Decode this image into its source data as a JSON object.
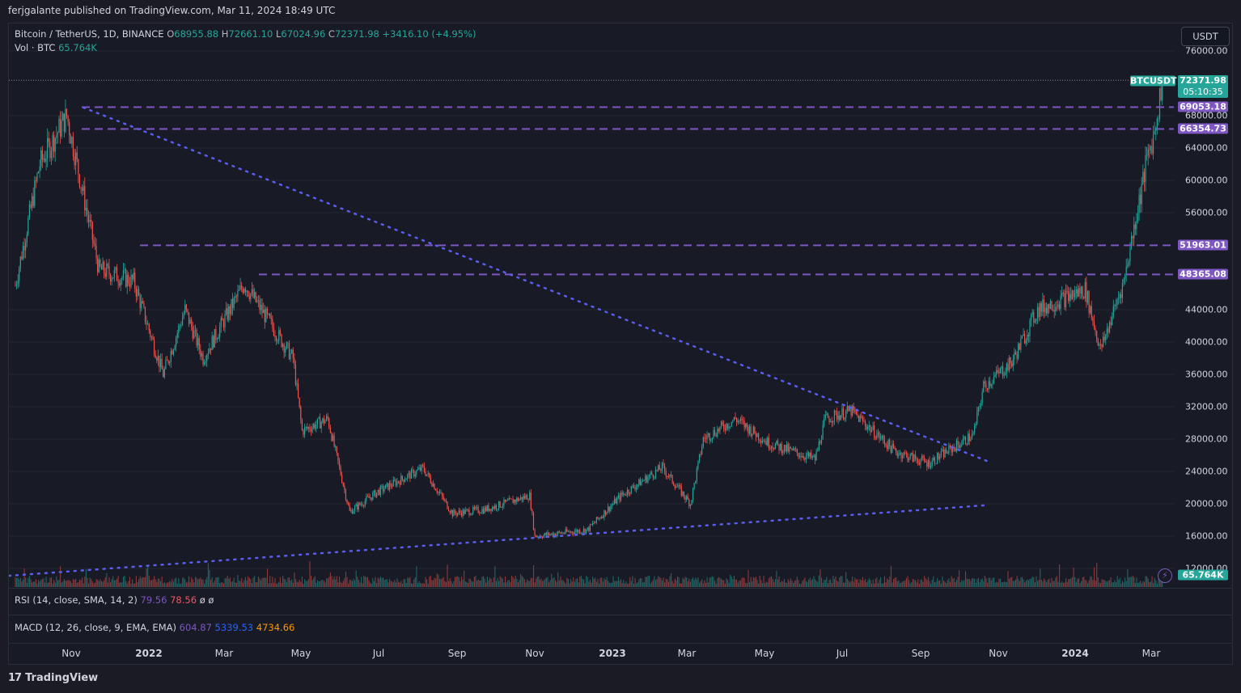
{
  "header": {
    "published": "ferjgalante published on TradingView.com, Mar 11, 2024 18:49 UTC"
  },
  "symbol": {
    "name": "Bitcoin / TetherUS, 1D, BINANCE",
    "o_label": "O",
    "o": "68955.88",
    "h_label": "H",
    "h": "72661.10",
    "l_label": "L",
    "l": "67024.96",
    "c_label": "C",
    "c": "72371.98",
    "change": "+3416.10 (+4.95%)"
  },
  "volume": {
    "label": "Vol · BTC",
    "value": "65.764K"
  },
  "currency_button": "USDT",
  "indicators": {
    "rsi": {
      "label": "RSI (14, close, SMA, 14, 2)",
      "v1": "79.56",
      "v2": "78.56",
      "v3": "ø",
      "v4": "ø"
    },
    "macd": {
      "label": "MACD (12, 26, close, 9, EMA, EMA)",
      "v1": "604.87",
      "v2": "5339.53",
      "v3": "4734.66"
    }
  },
  "price_tags": {
    "symbol_tag": "BTCUSDT",
    "last_price": "72371.98",
    "countdown": "05:10:35",
    "vol_tag": "65.764K"
  },
  "colors": {
    "up": "#26a69a",
    "down": "#ef5350",
    "level": "#7e57c2",
    "trend": "#5b5cf0",
    "bg": "#181a25"
  },
  "brand": "TradingView",
  "chart_data": {
    "type": "line",
    "title": "Bitcoin / TetherUS, 1D, BINANCE",
    "xlabel": "",
    "ylabel": "",
    "y_ticks": [
      "76000.00",
      "68000.00",
      "64000.00",
      "60000.00",
      "56000.00",
      "44000.00",
      "40000.00",
      "36000.00",
      "32000.00",
      "28000.00",
      "24000.00",
      "20000.00",
      "16000.00",
      "12000.00"
    ],
    "x_ticks": [
      {
        "label": "Nov",
        "bold": false
      },
      {
        "label": "2022",
        "bold": true
      },
      {
        "label": "Mar",
        "bold": false
      },
      {
        "label": "May",
        "bold": false
      },
      {
        "label": "Jul",
        "bold": false
      },
      {
        "label": "Sep",
        "bold": false
      },
      {
        "label": "Nov",
        "bold": false
      },
      {
        "label": "2023",
        "bold": true
      },
      {
        "label": "Mar",
        "bold": false
      },
      {
        "label": "May",
        "bold": false
      },
      {
        "label": "Jul",
        "bold": false
      },
      {
        "label": "Sep",
        "bold": false
      },
      {
        "label": "Nov",
        "bold": false
      },
      {
        "label": "2024",
        "bold": true
      },
      {
        "label": "Mar",
        "bold": false
      }
    ],
    "ylim": [
      10000,
      78000
    ],
    "levels": [
      {
        "price": 69053.18,
        "label": "69053.18"
      },
      {
        "price": 66354.73,
        "label": "66354.73"
      },
      {
        "price": 51963.01,
        "label": "51963.01"
      },
      {
        "price": 48365.08,
        "label": "48365.08"
      }
    ],
    "last_price": 72371.98,
    "series": [
      {
        "x": [
          "2021-10-01",
          "2021-10-20",
          "2021-11-10",
          "2021-12-05",
          "2022-01-01",
          "2022-01-24",
          "2022-02-10",
          "2022-02-24",
          "2022-03-28",
          "2022-05-05",
          "2022-05-12",
          "2022-06-01",
          "2022-06-18",
          "2022-07-10",
          "2022-08-14",
          "2022-09-06",
          "2022-10-01",
          "2022-11-05",
          "2022-11-09",
          "2022-12-20",
          "2023-01-15",
          "2023-02-16",
          "2023-03-10",
          "2023-03-20",
          "2023-04-14",
          "2023-05-10",
          "2023-06-15",
          "2023-06-23",
          "2023-07-13",
          "2023-08-16",
          "2023-09-11",
          "2023-10-16",
          "2023-10-24",
          "2023-11-15",
          "2023-12-05",
          "2024-01-11",
          "2024-01-23",
          "2024-02-10",
          "2024-02-28",
          "2024-03-05",
          "2024-03-11"
        ],
        "values": [
          47000,
          62000,
          68000,
          49000,
          47500,
          36000,
          44000,
          38000,
          47200,
          38000,
          29000,
          30500,
          19000,
          21500,
          24400,
          18800,
          19300,
          21000,
          16000,
          16800,
          21000,
          24500,
          20000,
          28000,
          30500,
          27500,
          25500,
          30500,
          31500,
          26500,
          25000,
          28500,
          34500,
          37500,
          44000,
          46500,
          39000,
          47500,
          62500,
          66000,
          72371.98
        ]
      }
    ]
  }
}
